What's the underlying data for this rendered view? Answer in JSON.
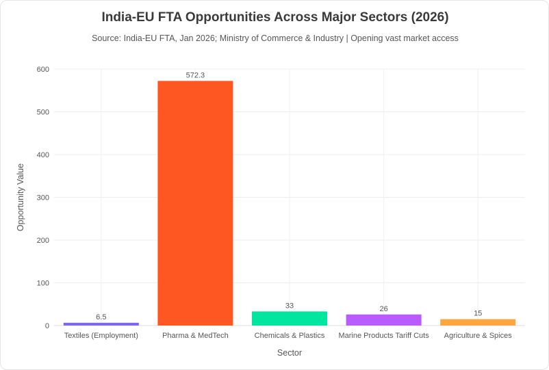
{
  "chart_data": {
    "type": "bar",
    "title": "India-EU FTA Opportunities Across Major Sectors (2026)",
    "subtitle": "Source: India-EU FTA, Jan 2026; Ministry of Commerce & Industry | Opening vast market access",
    "xlabel": "Sector",
    "ylabel": "Opportunity Value",
    "categories": [
      "Textiles (Employment)",
      "Pharma & MedTech",
      "Chemicals & Plastics",
      "Marine Products Tariff Cuts",
      "Agriculture & Spices"
    ],
    "values": [
      6.5,
      572.3,
      33,
      26,
      15
    ],
    "value_labels": [
      "6.5",
      "572.3",
      "33",
      "26",
      "15"
    ],
    "colors": [
      "#7b68ee",
      "#ff5722",
      "#00e5a0",
      "#b85cff",
      "#ffa640"
    ],
    "ylim": [
      0,
      600
    ],
    "yticks": [
      0,
      100,
      200,
      300,
      400,
      500,
      600
    ],
    "grid": true,
    "legend": "none"
  }
}
